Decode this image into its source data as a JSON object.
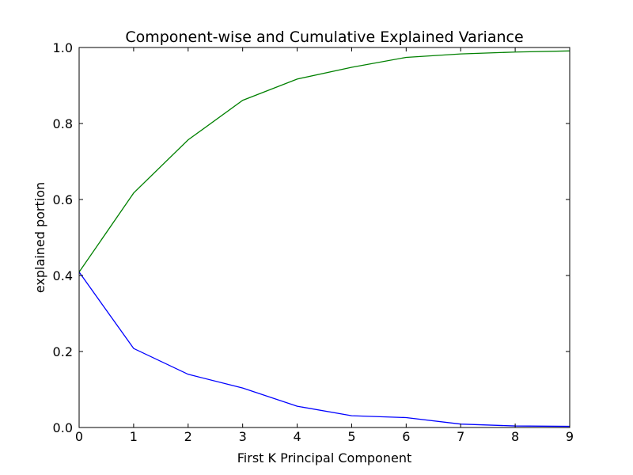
{
  "chart_data": {
    "type": "line",
    "title": "Component-wise and Cumulative Explained Variance",
    "xlabel": "First K Principal Component",
    "ylabel": "explained portion",
    "xlim": [
      0,
      9
    ],
    "ylim": [
      0.0,
      1.0
    ],
    "x_ticks": [
      "0",
      "1",
      "2",
      "3",
      "4",
      "5",
      "6",
      "7",
      "8",
      "9"
    ],
    "y_ticks": [
      "0.0",
      "0.2",
      "0.4",
      "0.6",
      "0.8",
      "1.0"
    ],
    "grid": false,
    "legend": "none",
    "x": [
      0,
      1,
      2,
      3,
      4,
      5,
      6,
      7,
      8,
      9
    ],
    "series": [
      {
        "color": "#0000ff",
        "values": [
          0.409,
          0.208,
          0.14,
          0.104,
          0.056,
          0.031,
          0.026,
          0.009,
          0.004,
          0.003
        ]
      },
      {
        "color": "#008000",
        "values": [
          0.409,
          0.617,
          0.757,
          0.861,
          0.917,
          0.948,
          0.974,
          0.983,
          0.988,
          0.991
        ]
      }
    ]
  }
}
